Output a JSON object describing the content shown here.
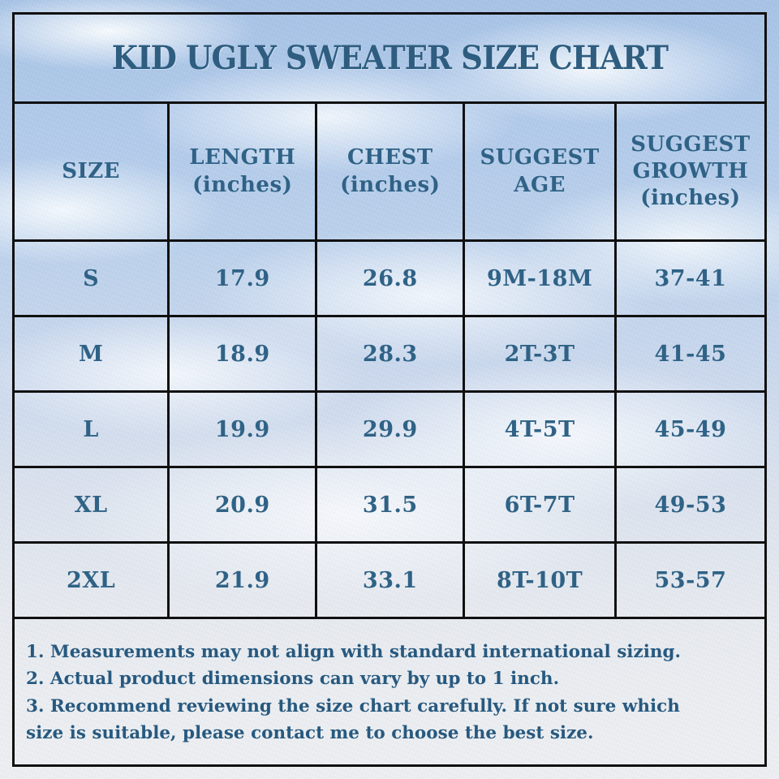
{
  "title": "KID UGLY SWEATER SIZE CHART",
  "table": {
    "columns": [
      {
        "line1": "SIZE",
        "line2": "",
        "line3": ""
      },
      {
        "line1": "LENGTH",
        "line2": "(inches)",
        "line3": ""
      },
      {
        "line1": "CHEST",
        "line2": "(inches)",
        "line3": ""
      },
      {
        "line1": "SUGGEST",
        "line2": "AGE",
        "line3": ""
      },
      {
        "line1": "SUGGEST",
        "line2": "GROWTH",
        "line3": "(inches)"
      }
    ],
    "rows": [
      {
        "size": "S",
        "length": "17.9",
        "chest": "26.8",
        "age": "9M-18M",
        "growth": "37-41"
      },
      {
        "size": "M",
        "length": "18.9",
        "chest": "28.3",
        "age": "2T-3T",
        "growth": "41-45"
      },
      {
        "size": "L",
        "length": "19.9",
        "chest": "29.9",
        "age": "4T-5T",
        "growth": "45-49"
      },
      {
        "size": "XL",
        "length": "20.9",
        "chest": "31.5",
        "age": "6T-7T",
        "growth": "49-53"
      },
      {
        "size": "2XL",
        "length": "21.9",
        "chest": "33.1",
        "age": "8T-10T",
        "growth": "53-57"
      }
    ]
  },
  "notes": [
    "1. Measurements may not align with standard international sizing.",
    "2. Actual product dimensions can vary by up to 1 inch.",
    "3. Recommend reviewing the size chart carefully. If not sure which size is suitable, please contact me to choose the best size."
  ],
  "colors": {
    "text": "#2f6286",
    "title_text": "#2e5d80",
    "notes_text": "#27597f",
    "border": "#101010",
    "sky": "#aec8e9",
    "cloud": "#fbfdff",
    "paper": "#edeef1"
  }
}
